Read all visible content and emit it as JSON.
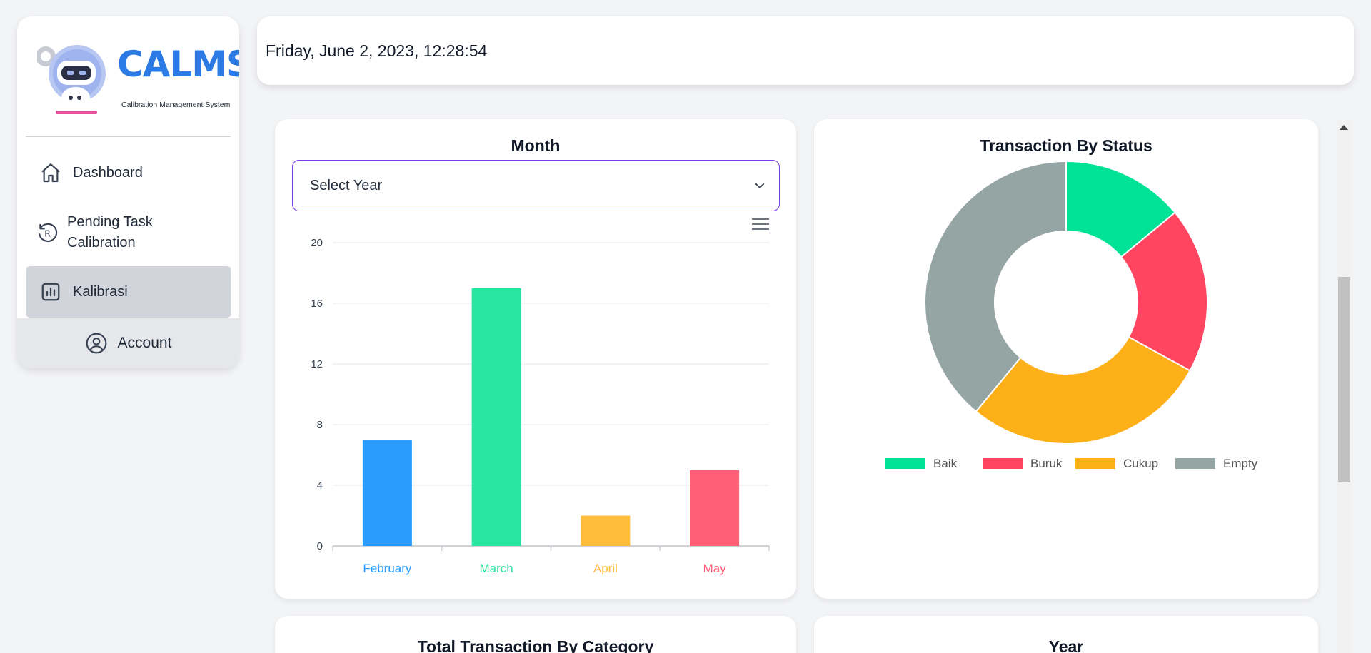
{
  "app": {
    "logo_text": "CALMS",
    "logo_subtitle": "Calibration Management System"
  },
  "sidebar": {
    "items": [
      {
        "label": "Dashboard",
        "icon": "home-icon"
      },
      {
        "label": "Pending Task Calibration",
        "icon": "refresh-r-icon"
      },
      {
        "label": "Kalibrasi",
        "icon": "bar-chart-icon",
        "active": true
      }
    ],
    "account": {
      "label": "Account",
      "icon": "user-circle-icon"
    }
  },
  "header": {
    "datetime": "Friday, June 2, 2023, 12:28:54"
  },
  "month_card": {
    "title": "Month",
    "select_value": "Select Year"
  },
  "status_card": {
    "title": "Transaction By Status"
  },
  "category_card": {
    "title": "Total Transaction By Category"
  },
  "year_card": {
    "title": "Year"
  },
  "colors": {
    "accent_purple": "#7c3aed",
    "blue": "#2b9cff",
    "green": "#27e6a1",
    "yellow": "#ffbd3b",
    "red": "#ff6078",
    "donut_green": "#00e396",
    "donut_red": "#ff4560",
    "donut_yellow": "#feb019",
    "donut_gray": "#95a5a4"
  },
  "chart_data": [
    {
      "type": "bar",
      "title": "Month",
      "categories": [
        "February",
        "March",
        "April",
        "May"
      ],
      "values": [
        7,
        17,
        2,
        5
      ],
      "colors": [
        "#2b9cff",
        "#27e6a1",
        "#ffbd3b",
        "#ff6078"
      ],
      "ylim": [
        0,
        20
      ],
      "yticks": [
        "20",
        "16",
        "12",
        "8",
        "4",
        "0"
      ],
      "grid": true
    },
    {
      "type": "pie",
      "title": "Transaction By Status",
      "labels": [
        "Baik",
        "Buruk",
        "Cukup",
        "Empty"
      ],
      "values": [
        14,
        19,
        28,
        39
      ],
      "colors": [
        "#00e396",
        "#ff4560",
        "#feb019",
        "#95a5a4"
      ],
      "legend": "bottom"
    }
  ]
}
